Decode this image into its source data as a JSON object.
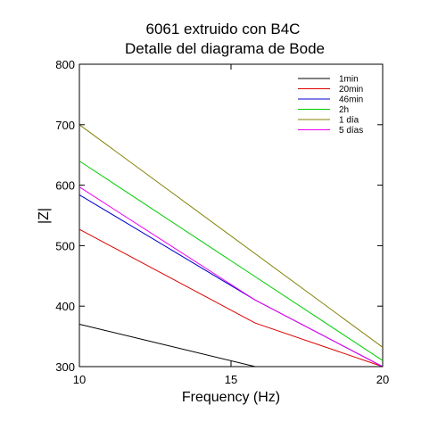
{
  "chart_data": {
    "type": "line",
    "title": "6061 extruido con B4C",
    "subtitle": "Detalle del diagrama de Bode",
    "xlabel": "Frequency (Hz)",
    "ylabel": "|Z|",
    "xlim": [
      10,
      20
    ],
    "ylim": [
      300,
      800
    ],
    "xticks": [
      10,
      15,
      20
    ],
    "yticks": [
      300,
      400,
      500,
      600,
      700,
      800
    ],
    "grid": false,
    "legend_position": "top-right",
    "series": [
      {
        "name": "1min",
        "color": "#000000",
        "x": [
          10,
          15.8
        ],
        "y": [
          370,
          300
        ]
      },
      {
        "name": "20min",
        "color": "#dd0000",
        "x": [
          10,
          15.8,
          20
        ],
        "y": [
          527,
          372,
          300
        ]
      },
      {
        "name": "46min",
        "color": "#0000cc",
        "x": [
          10,
          15.8,
          20
        ],
        "y": [
          584,
          410,
          300
        ]
      },
      {
        "name": "2h",
        "color": "#00cc00",
        "x": [
          10,
          20
        ],
        "y": [
          640,
          310
        ]
      },
      {
        "name": "1 día",
        "color": "#808000",
        "x": [
          10,
          20
        ],
        "y": [
          700,
          332
        ]
      },
      {
        "name": "5 días",
        "color": "#ee00ee",
        "x": [
          10,
          15.8,
          20
        ],
        "y": [
          597,
          410,
          300
        ]
      }
    ]
  }
}
